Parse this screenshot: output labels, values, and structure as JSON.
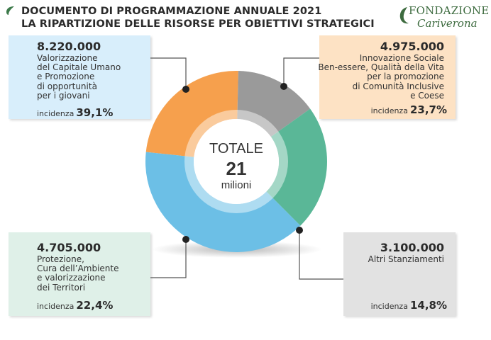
{
  "header": {
    "title_line1": "DOCUMENTO DI PROGRAMMAZIONE ANNUALE 2021",
    "title_line2": "LA RIPARTIZIONE DELLE RISORSE PER OBIETTIVI STRATEGICI"
  },
  "logo": {
    "line1": "FONDAZIONE",
    "line2": "Cariverona"
  },
  "center": {
    "label": "TOTALE",
    "value": "21",
    "unit": "milioni"
  },
  "incidence_label": "incidenza",
  "cards": {
    "tl": {
      "amount": "8.220.000",
      "desc": [
        "Valorizzazione",
        "del Capitale Umano",
        "e Promozione",
        "di opportunità",
        "per i giovani"
      ],
      "pct": "39,1%"
    },
    "tr": {
      "amount": "4.975.000",
      "desc": [
        "Innovazione Sociale",
        "Ben-essere, Qualità della Vita",
        "per la promozione",
        "di Comunità Inclusive",
        "e Coese"
      ],
      "pct": "23,7%"
    },
    "bl": {
      "amount": "4.705.000",
      "desc": [
        "Protezione,",
        "Cura dell’Ambiente",
        "e valorizzazione",
        "dei Territori"
      ],
      "pct": "22,4%"
    },
    "br": {
      "amount": "3.100.000",
      "desc": [
        "Altri Stanziamenti"
      ],
      "pct": "14,8%"
    }
  },
  "chart_data": {
    "type": "pie",
    "title": "",
    "categories": [
      "Valorizzazione del Capitale Umano e Promozione di opportunità per i giovani",
      "Innovazione Sociale Ben-essere, Qualità della Vita per la promozione di Comunità Inclusive e Coese",
      "Protezione, Cura dell’Ambiente e valorizzazione dei Territori",
      "Altri Stanziamenti"
    ],
    "values": [
      8220000,
      4975000,
      4705000,
      3100000
    ],
    "percentages": [
      39.1,
      23.7,
      22.4,
      14.8
    ],
    "colors": [
      "#6cbfe6",
      "#f6a04d",
      "#5ab797",
      "#9a9a9a"
    ],
    "total_label": "21 milioni",
    "legend": "none"
  }
}
